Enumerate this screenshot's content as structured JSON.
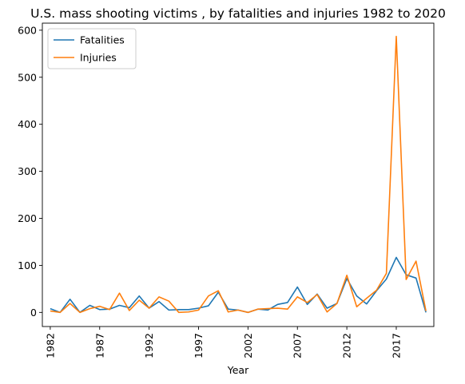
{
  "chart_data": {
    "type": "line",
    "title": "U.S. mass shooting victims , by fatalities and injuries 1982 to 2020",
    "xlabel": "Year",
    "ylabel": "",
    "xlim": [
      1981.2,
      2020.8
    ],
    "ylim": [
      -30,
      615
    ],
    "xticks": [
      1982,
      1987,
      1992,
      1997,
      2002,
      2007,
      2012,
      2017
    ],
    "yticks": [
      0,
      100,
      200,
      300,
      400,
      500,
      600
    ],
    "legend_position": "top-left",
    "x": [
      1982,
      1983,
      1984,
      1985,
      1986,
      1987,
      1988,
      1989,
      1990,
      1991,
      1992,
      1993,
      1994,
      1995,
      1996,
      1997,
      1998,
      1999,
      2000,
      2001,
      2002,
      2003,
      2004,
      2005,
      2006,
      2007,
      2008,
      2009,
      2010,
      2011,
      2012,
      2013,
      2014,
      2015,
      2016,
      2017,
      2018,
      2019,
      2020
    ],
    "series": [
      {
        "name": "Fatalities",
        "color": "#1f77b4",
        "values": [
          8,
          0,
          28,
          0,
          15,
          6,
          7,
          15,
          10,
          35,
          9,
          23,
          5,
          6,
          6,
          9,
          14,
          43,
          7,
          5,
          0,
          7,
          5,
          17,
          21,
          54,
          17,
          39,
          9,
          19,
          72,
          35,
          18,
          46,
          71,
          117,
          80,
          73,
          0
        ]
      },
      {
        "name": "Injuries",
        "color": "#ff7f0e",
        "values": [
          3,
          0,
          19,
          0,
          8,
          13,
          6,
          41,
          4,
          26,
          9,
          33,
          24,
          0,
          1,
          5,
          35,
          46,
          1,
          5,
          0,
          7,
          8,
          9,
          7,
          33,
          21,
          38,
          1,
          19,
          79,
          12,
          30,
          47,
          83,
          587,
          70,
          109,
          3
        ]
      }
    ]
  }
}
